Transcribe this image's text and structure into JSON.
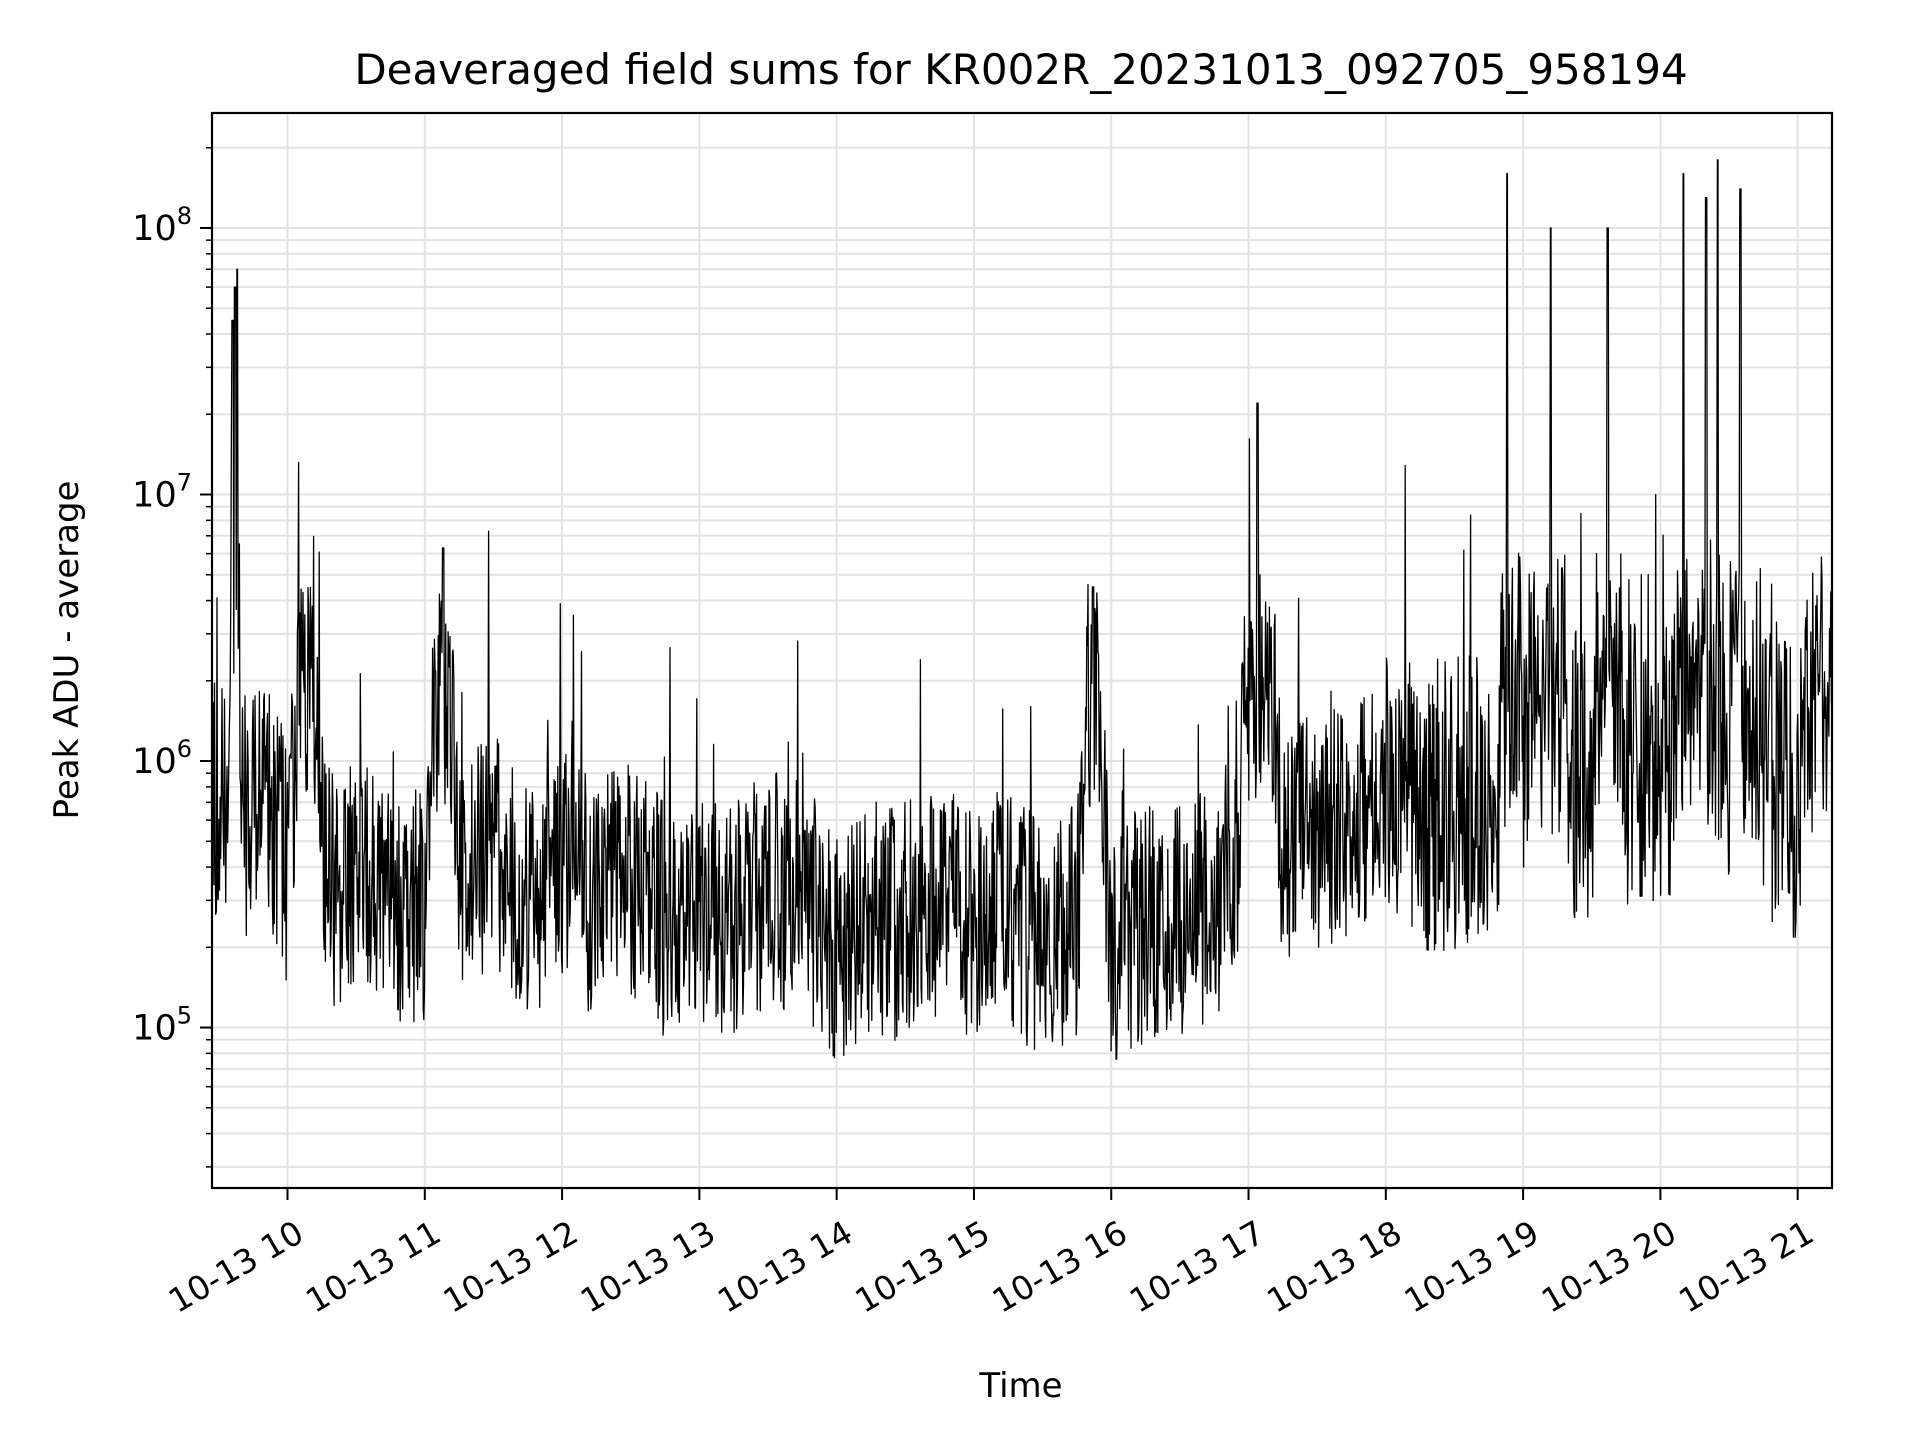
{
  "chart_data": {
    "type": "line",
    "title": "Deaveraged field sums for KR002R_20231013_092705_958194",
    "xlabel": "Time",
    "ylabel": "Peak ADU - average",
    "y_scale": "log",
    "ylim": [
      25000,
      270000000
    ],
    "xlim": [
      "2023-10-13 09:27",
      "2023-10-13 21:15"
    ],
    "grid": true,
    "legend": "none",
    "line_color": "#000000",
    "x_ticks": [
      "10-13 10",
      "10-13 11",
      "10-13 12",
      "10-13 13",
      "10-13 14",
      "10-13 15",
      "10-13 16",
      "10-13 17",
      "10-13 18",
      "10-13 19",
      "10-13 20",
      "10-13 21"
    ],
    "y_ticks": [
      {
        "value": 100000,
        "base": "10",
        "exp": "5"
      },
      {
        "value": 1000000,
        "base": "10",
        "exp": "6"
      },
      {
        "value": 10000000,
        "base": "10",
        "exp": "7"
      },
      {
        "value": 100000000,
        "base": "10",
        "exp": "8"
      }
    ],
    "series": [
      {
        "x": [
          "2023-10-13 09:27",
          "2023-10-13 09:30",
          "2023-10-13 09:33",
          "2023-10-13 09:35",
          "2023-10-13 09:36",
          "2023-10-13 09:37",
          "2023-10-13 09:38",
          "2023-10-13 09:40",
          "2023-10-13 09:42",
          "2023-10-13 09:45",
          "2023-10-13 09:50",
          "2023-10-13 09:55",
          "2023-10-13 10:00",
          "2023-10-13 10:05",
          "2023-10-13 10:10",
          "2023-10-13 10:15",
          "2023-10-13 10:20",
          "2023-10-13 10:30",
          "2023-10-13 10:40",
          "2023-10-13 10:50",
          "2023-10-13 11:00",
          "2023-10-13 11:08",
          "2023-10-13 11:15",
          "2023-10-13 11:30",
          "2023-10-13 11:45",
          "2023-10-13 12:00",
          "2023-10-13 12:15",
          "2023-10-13 12:30",
          "2023-10-13 12:45",
          "2023-10-13 13:00",
          "2023-10-13 13:15",
          "2023-10-13 13:30",
          "2023-10-13 13:45",
          "2023-10-13 14:00",
          "2023-10-13 14:15",
          "2023-10-13 14:30",
          "2023-10-13 14:45",
          "2023-10-13 15:00",
          "2023-10-13 15:15",
          "2023-10-13 15:30",
          "2023-10-13 15:45",
          "2023-10-13 15:52",
          "2023-10-13 16:00",
          "2023-10-13 16:15",
          "2023-10-13 16:30",
          "2023-10-13 16:45",
          "2023-10-13 16:55",
          "2023-10-13 17:04",
          "2023-10-13 17:15",
          "2023-10-13 17:30",
          "2023-10-13 17:45",
          "2023-10-13 18:00",
          "2023-10-13 18:10",
          "2023-10-13 18:20",
          "2023-10-13 18:30",
          "2023-10-13 18:40",
          "2023-10-13 18:50",
          "2023-10-13 18:53",
          "2023-10-13 19:00",
          "2023-10-13 19:12",
          "2023-10-13 19:20",
          "2023-10-13 19:30",
          "2023-10-13 19:37",
          "2023-10-13 19:45",
          "2023-10-13 19:55",
          "2023-10-13 20:05",
          "2023-10-13 20:10",
          "2023-10-13 20:15",
          "2023-10-13 20:20",
          "2023-10-13 20:25",
          "2023-10-13 20:30",
          "2023-10-13 20:35",
          "2023-10-13 20:45",
          "2023-10-13 20:55",
          "2023-10-13 21:00",
          "2023-10-13 21:05",
          "2023-10-13 21:10",
          "2023-10-13 21:15"
        ],
        "y": [
          700000,
          750000,
          650000,
          900000,
          45000000,
          60000000,
          70000000,
          800000,
          600000,
          700000,
          900000,
          550000,
          400000,
          1500000,
          3000000,
          450000,
          300000,
          400000,
          350000,
          250000,
          300000,
          6300000,
          350000,
          500000,
          300000,
          400000,
          300000,
          350000,
          250000,
          300000,
          250000,
          350000,
          300000,
          200000,
          250000,
          250000,
          300000,
          250000,
          300000,
          200000,
          250000,
          4500000,
          200000,
          250000,
          250000,
          300000,
          400000,
          22000000,
          450000,
          550000,
          600000,
          800000,
          700000,
          650000,
          700000,
          750000,
          900000,
          160000000,
          1000000,
          100000000,
          900000,
          800000,
          100000000,
          900000,
          1000000,
          1100000,
          160000000,
          900000,
          130000000,
          180000000,
          1000000,
          140000000,
          900000,
          800000,
          700000,
          1500000,
          1800000,
          1500000
        ]
      }
    ]
  }
}
